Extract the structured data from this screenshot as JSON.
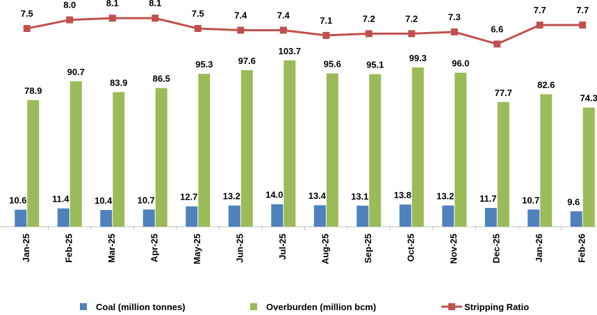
{
  "chart_data": {
    "type": "bar-line",
    "categories": [
      "Jan-25",
      "Feb-25",
      "Mar-25",
      "Apr-25",
      "May-25",
      "Jun-25",
      "Jul-25",
      "Aug-25",
      "Sep-25",
      "Oct-25",
      "Nov-25",
      "Dec-25",
      "Jan-26",
      "Feb-26"
    ],
    "ylim": [
      0,
      137
    ],
    "y2lim": [
      -4,
      8.75
    ],
    "series": [
      {
        "name": "Coal (million tonnes)",
        "color": "#4f81bd",
        "type": "bar",
        "values": [
          10.6,
          11.4,
          10.4,
          10.7,
          12.7,
          13.2,
          14.0,
          13.4,
          13.1,
          13.8,
          13.2,
          11.7,
          10.7,
          9.6
        ],
        "value_labels": [
          "10.6",
          "11.4",
          "10.4",
          "10.7",
          "12.7",
          "13.2",
          "14.0",
          "13.4",
          "13.1",
          "13.8",
          "13.2",
          "11.7",
          "10.7",
          "9.6"
        ]
      },
      {
        "name": "Overburden (million bcm)",
        "color": "#9bbb59",
        "type": "bar",
        "values": [
          78.9,
          90.7,
          83.9,
          86.5,
          95.3,
          97.6,
          103.7,
          95.6,
          95.1,
          99.3,
          96.0,
          77.7,
          82.6,
          74.3
        ],
        "value_labels": [
          "78.9",
          "90.7",
          "83.9",
          "86.5",
          "95.3",
          "97.6",
          "103.7",
          "95.6",
          "95.1",
          "99.3",
          "96.0",
          "77.7",
          "82.6",
          "74.3"
        ]
      },
      {
        "name": "Stripping Ratio",
        "color": "#c0504d",
        "type": "line",
        "axis": "y2",
        "values": [
          7.5,
          8.0,
          8.1,
          8.1,
          7.5,
          7.4,
          7.4,
          7.1,
          7.2,
          7.2,
          7.3,
          6.6,
          7.7,
          7.7
        ],
        "value_labels": [
          "7.5",
          "8.0",
          "8.1",
          "8.1",
          "7.5",
          "7.4",
          "7.4",
          "7.1",
          "7.2",
          "7.2",
          "7.3",
          "6.6",
          "7.7",
          "7.7"
        ]
      }
    ]
  }
}
